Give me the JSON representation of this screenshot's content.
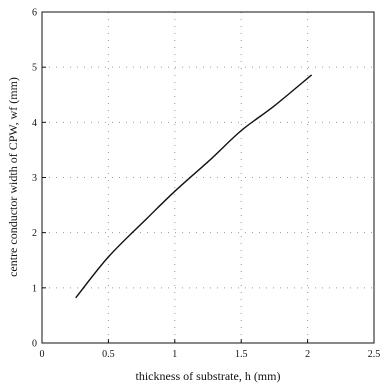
{
  "chart_data": {
    "type": "line",
    "title": "",
    "xlabel": "thickness of substrate, h (mm)",
    "ylabel": "centre conductor width of CPW, wf (mm)",
    "xlim": [
      0,
      2.5
    ],
    "ylim": [
      0,
      6
    ],
    "xticks": [
      0,
      0.5,
      1,
      1.5,
      2,
      2.5
    ],
    "yticks": [
      0,
      1,
      2,
      3,
      4,
      5,
      6
    ],
    "xtick_labels": [
      "0",
      "0.5",
      "1",
      "1.5",
      "2",
      "2.5"
    ],
    "ytick_labels": [
      "0",
      "1",
      "2",
      "3",
      "4",
      "5",
      "6"
    ],
    "grid": true,
    "grid_style": "dotted",
    "legend": false,
    "series": [
      {
        "x": [
          0.254,
          0.5,
          0.787,
          1.0,
          1.27,
          1.5,
          1.75,
          2.03
        ],
        "values": [
          0.82,
          1.56,
          2.25,
          2.75,
          3.33,
          3.85,
          4.3,
          4.86
        ]
      }
    ],
    "colors": {
      "line": "#111111",
      "grid": "#9a9a9a",
      "axis": "#111111"
    }
  }
}
